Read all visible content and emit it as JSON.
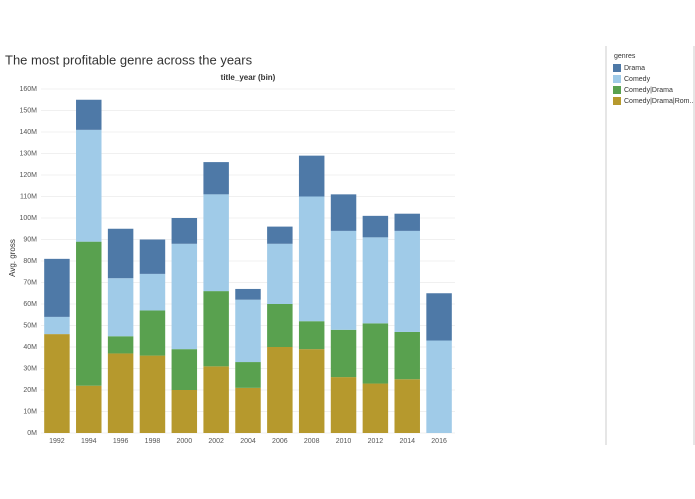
{
  "chart_data": {
    "type": "stacked-bar",
    "title": "The most profitable genre across the years",
    "header": "title_year (bin)",
    "y_label": "Avg. gross",
    "legend_title": "genres",
    "categories": [
      "1992",
      "1994",
      "1996",
      "1998",
      "2000",
      "2002",
      "2004",
      "2006",
      "2008",
      "2010",
      "2012",
      "2014",
      "2016"
    ],
    "series": [
      {
        "name": "Drama",
        "color": "#4e79a7",
        "values": [
          27,
          14,
          23,
          16,
          12,
          15,
          5,
          8,
          19,
          17,
          10,
          8,
          22
        ]
      },
      {
        "name": "Comedy",
        "color": "#a0cbe8",
        "values": [
          8,
          52,
          27,
          17,
          49,
          45,
          29,
          28,
          58,
          46,
          40,
          47,
          43
        ]
      },
      {
        "name": "Comedy|Drama",
        "color": "#59a14f",
        "values": [
          null,
          67,
          8,
          21,
          19,
          35,
          12,
          20,
          13,
          22,
          28,
          22,
          null
        ]
      },
      {
        "name": "Comedy|Drama|Rom..",
        "color": "#b6992d",
        "values": [
          46,
          22,
          37,
          36,
          20,
          31,
          21,
          40,
          39,
          26,
          23,
          25,
          null
        ]
      }
    ],
    "ylim": [
      0,
      160
    ],
    "yticks": [
      {
        "value": 0,
        "label": "0M"
      },
      {
        "value": 10,
        "label": "10M"
      },
      {
        "value": 20,
        "label": "20M"
      },
      {
        "value": 30,
        "label": "30M"
      },
      {
        "value": 40,
        "label": "40M"
      },
      {
        "value": 50,
        "label": "50M"
      },
      {
        "value": 60,
        "label": "60M"
      },
      {
        "value": 70,
        "label": "70M"
      },
      {
        "value": 80,
        "label": "80M"
      },
      {
        "value": 90,
        "label": "90M"
      },
      {
        "value": 100,
        "label": "100M"
      },
      {
        "value": 110,
        "label": "110M"
      },
      {
        "value": 120,
        "label": "120M"
      },
      {
        "value": 130,
        "label": "130M"
      },
      {
        "value": 140,
        "label": "140M"
      },
      {
        "value": 150,
        "label": "150M"
      },
      {
        "value": 160,
        "label": "160M"
      }
    ],
    "grid": true
  }
}
